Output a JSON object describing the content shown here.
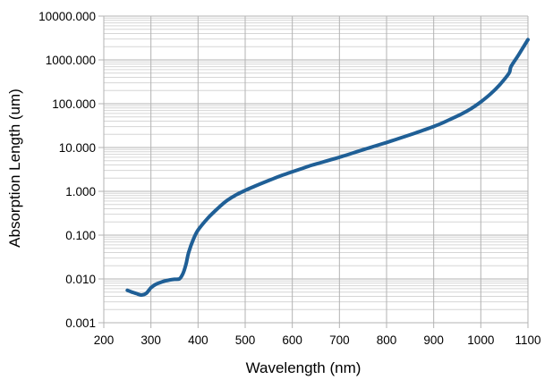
{
  "chart_data": {
    "type": "line",
    "title": "",
    "xlabel": "Wavelength (nm)",
    "ylabel": "Absorption Length (um)",
    "xlim": [
      200,
      1100
    ],
    "ylim": [
      0.001,
      10000
    ],
    "yscale": "log",
    "grid": true,
    "legend": "none",
    "x_ticks": [
      "200",
      "300",
      "400",
      "500",
      "600",
      "700",
      "800",
      "900",
      "1000",
      "1100"
    ],
    "y_ticks": [
      "0.001",
      "0.010",
      "0.100",
      "1.000",
      "10.000",
      "100.000",
      "1000.000",
      "10000.000"
    ],
    "series": [
      {
        "color": "#1f5f96",
        "x": [
          250,
          260,
          270,
          280,
          290,
          300,
          310,
          320,
          330,
          340,
          350,
          360,
          365,
          370,
          375,
          380,
          390,
          400,
          420,
          440,
          460,
          480,
          500,
          520,
          540,
          560,
          580,
          600,
          620,
          640,
          660,
          680,
          700,
          720,
          740,
          760,
          780,
          800,
          820,
          840,
          860,
          880,
          900,
          920,
          940,
          960,
          980,
          1000,
          1020,
          1040,
          1060,
          1064,
          1080,
          1100
        ],
        "y": [
          0.0055,
          0.005,
          0.0046,
          0.0043,
          0.0047,
          0.0063,
          0.0075,
          0.0083,
          0.009,
          0.0095,
          0.0098,
          0.01,
          0.0115,
          0.015,
          0.023,
          0.04,
          0.08,
          0.13,
          0.24,
          0.39,
          0.6,
          0.82,
          1.05,
          1.3,
          1.6,
          1.95,
          2.35,
          2.8,
          3.3,
          3.9,
          4.5,
          5.2,
          6.0,
          7.0,
          8.2,
          9.6,
          11.2,
          13.0,
          15.3,
          18.0,
          21.2,
          25.2,
          30.2,
          37.0,
          46.5,
          59.0,
          78.0,
          110.0,
          165.0,
          270.0,
          500.0,
          700.0,
          1300.0,
          2900.0
        ]
      }
    ]
  }
}
